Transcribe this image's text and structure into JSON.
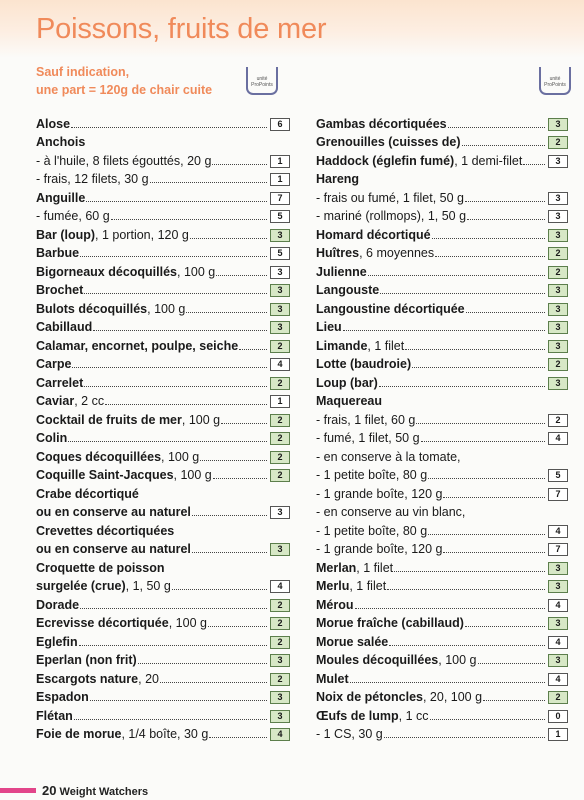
{
  "page_title": "Poissons, fruits de mer",
  "subtitle_lines": [
    "Sauf indication,",
    "une part = 120g de chair cuite"
  ],
  "logo_text": "unité ProPoints",
  "footer": {
    "page_number": "20",
    "brand": "Weight Watchers"
  },
  "left_column": [
    {
      "bold": "Alose",
      "rest": "",
      "value": "6",
      "green": false
    },
    {
      "bold": "Anchois",
      "rest": "",
      "value": null,
      "green": false
    },
    {
      "bold": "",
      "rest": "- à l'huile, 8 filets égouttés, 20 g",
      "value": "1",
      "green": false
    },
    {
      "bold": "",
      "rest": "- frais, 12 filets, 30 g",
      "value": "1",
      "green": false
    },
    {
      "bold": "Anguille",
      "rest": "",
      "value": "7",
      "green": false
    },
    {
      "bold": "",
      "rest": "- fumée, 60 g",
      "value": "5",
      "green": false
    },
    {
      "bold": "Bar (loup)",
      "rest": ", 1 portion, 120 g",
      "value": "3",
      "green": true
    },
    {
      "bold": "Barbue",
      "rest": "",
      "value": "5",
      "green": false
    },
    {
      "bold": "Bigorneaux décoquillés",
      "rest": ", 100 g",
      "value": "3",
      "green": false
    },
    {
      "bold": "Brochet",
      "rest": "",
      "value": "3",
      "green": true
    },
    {
      "bold": "Bulots décoquillés",
      "rest": ", 100 g",
      "value": "3",
      "green": true
    },
    {
      "bold": "Cabillaud",
      "rest": "",
      "value": "3",
      "green": true
    },
    {
      "bold": "Calamar, encornet, poulpe, seiche",
      "rest": "",
      "value": "2",
      "green": true
    },
    {
      "bold": "Carpe",
      "rest": "",
      "value": "4",
      "green": false
    },
    {
      "bold": "Carrelet",
      "rest": "",
      "value": "2",
      "green": true
    },
    {
      "bold": "Caviar",
      "rest": ", 2 cc",
      "value": "1",
      "green": false
    },
    {
      "bold": "Cocktail de fruits de mer",
      "rest": ", 100 g",
      "value": "2",
      "green": true
    },
    {
      "bold": "Colin",
      "rest": "",
      "value": "2",
      "green": true
    },
    {
      "bold": "Coques décoquillées",
      "rest": ", 100 g",
      "value": "2",
      "green": true
    },
    {
      "bold": "Coquille Saint-Jacques",
      "rest": ", 100 g",
      "value": "2",
      "green": true
    },
    {
      "bold": "Crabe décortiqué",
      "rest": "",
      "value": null,
      "green": false
    },
    {
      "bold": "ou en conserve au naturel",
      "rest": "",
      "value": "3",
      "green": false
    },
    {
      "bold": "Crevettes décortiquées",
      "rest": "",
      "value": null,
      "green": false
    },
    {
      "bold": "ou en conserve au naturel",
      "rest": "",
      "value": "3",
      "green": true
    },
    {
      "bold": "Croquette de poisson",
      "rest": "",
      "value": null,
      "green": false
    },
    {
      "bold": "surgelée (crue)",
      "rest": ", 1, 50 g",
      "value": "4",
      "green": false
    },
    {
      "bold": "Dorade",
      "rest": "",
      "value": "2",
      "green": true
    },
    {
      "bold": "Ecrevisse décortiquée",
      "rest": ", 100 g",
      "value": "2",
      "green": true
    },
    {
      "bold": "Eglefin",
      "rest": "",
      "value": "2",
      "green": true
    },
    {
      "bold": "Eperlan (non frit)",
      "rest": "",
      "value": "3",
      "green": true
    },
    {
      "bold": "Escargots nature",
      "rest": ", 20",
      "value": "2",
      "green": true
    },
    {
      "bold": "Espadon",
      "rest": "",
      "value": "3",
      "green": true
    },
    {
      "bold": "Flétan",
      "rest": "",
      "value": "3",
      "green": true
    },
    {
      "bold": "Foie de morue",
      "rest": ", 1/4 boîte, 30 g",
      "value": "4",
      "green": true
    }
  ],
  "right_column": [
    {
      "bold": "Gambas décortiquées",
      "rest": "",
      "value": "3",
      "green": true
    },
    {
      "bold": "Grenouilles (cuisses de)",
      "rest": "",
      "value": "2",
      "green": true
    },
    {
      "bold": "Haddock (églefin fumé)",
      "rest": ", 1 demi-filet",
      "value": "3",
      "green": false
    },
    {
      "bold": "Hareng",
      "rest": "",
      "value": null,
      "green": false
    },
    {
      "bold": "",
      "rest": "- frais ou fumé, 1 filet, 50 g",
      "value": "3",
      "green": false
    },
    {
      "bold": "",
      "rest": "- mariné (rollmops), 1, 50 g",
      "value": "3",
      "green": false
    },
    {
      "bold": "Homard décortiqué",
      "rest": "",
      "value": "3",
      "green": true
    },
    {
      "bold": "Huîtres",
      "rest": ", 6 moyennes",
      "value": "2",
      "green": true
    },
    {
      "bold": "Julienne",
      "rest": "",
      "value": "2",
      "green": true
    },
    {
      "bold": "Langouste",
      "rest": "",
      "value": "3",
      "green": true
    },
    {
      "bold": "Langoustine décortiquée",
      "rest": "",
      "value": "3",
      "green": true
    },
    {
      "bold": "Lieu",
      "rest": "",
      "value": "3",
      "green": true
    },
    {
      "bold": "Limande",
      "rest": ", 1 filet",
      "value": "3",
      "green": true
    },
    {
      "bold": "Lotte (baudroie)",
      "rest": "",
      "value": "2",
      "green": true
    },
    {
      "bold": "Loup (bar)",
      "rest": "",
      "value": "3",
      "green": true
    },
    {
      "bold": "Maquereau",
      "rest": "",
      "value": null,
      "green": false
    },
    {
      "bold": "",
      "rest": "- frais, 1 filet, 60 g",
      "value": "2",
      "green": false
    },
    {
      "bold": "",
      "rest": "- fumé, 1 filet, 50 g",
      "value": "4",
      "green": false
    },
    {
      "bold": "",
      "rest": "- en conserve à la tomate,",
      "value": null,
      "green": false
    },
    {
      "bold": "",
      "rest": "- 1 petite boîte, 80 g",
      "value": "5",
      "green": false
    },
    {
      "bold": "",
      "rest": "- 1 grande boîte, 120 g",
      "value": "7",
      "green": false
    },
    {
      "bold": "",
      "rest": "- en conserve au vin blanc,",
      "value": null,
      "green": false
    },
    {
      "bold": "",
      "rest": "- 1 petite boîte, 80 g",
      "value": "4",
      "green": false
    },
    {
      "bold": "",
      "rest": "- 1 grande boîte, 120 g",
      "value": "7",
      "green": false
    },
    {
      "bold": "Merlan",
      "rest": ", 1 filet",
      "value": "3",
      "green": true
    },
    {
      "bold": "Merlu",
      "rest": ", 1 filet",
      "value": "3",
      "green": true
    },
    {
      "bold": "Mérou",
      "rest": "",
      "value": "4",
      "green": false
    },
    {
      "bold": "Morue fraîche (cabillaud)",
      "rest": "",
      "value": "3",
      "green": true
    },
    {
      "bold": "Morue salée",
      "rest": "",
      "value": "4",
      "green": false
    },
    {
      "bold": "Moules décoquillées",
      "rest": ", 100 g",
      "value": "3",
      "green": true
    },
    {
      "bold": "Mulet",
      "rest": "",
      "value": "4",
      "green": false
    },
    {
      "bold": "Noix de pétoncles",
      "rest": ", 20, 100 g",
      "value": "2",
      "green": true
    },
    {
      "bold": "Œufs de lump",
      "rest": ", 1 cc",
      "value": "0",
      "green": false
    },
    {
      "bold": "",
      "rest": "- 1 CS, 30 g",
      "value": "1",
      "green": false
    }
  ]
}
